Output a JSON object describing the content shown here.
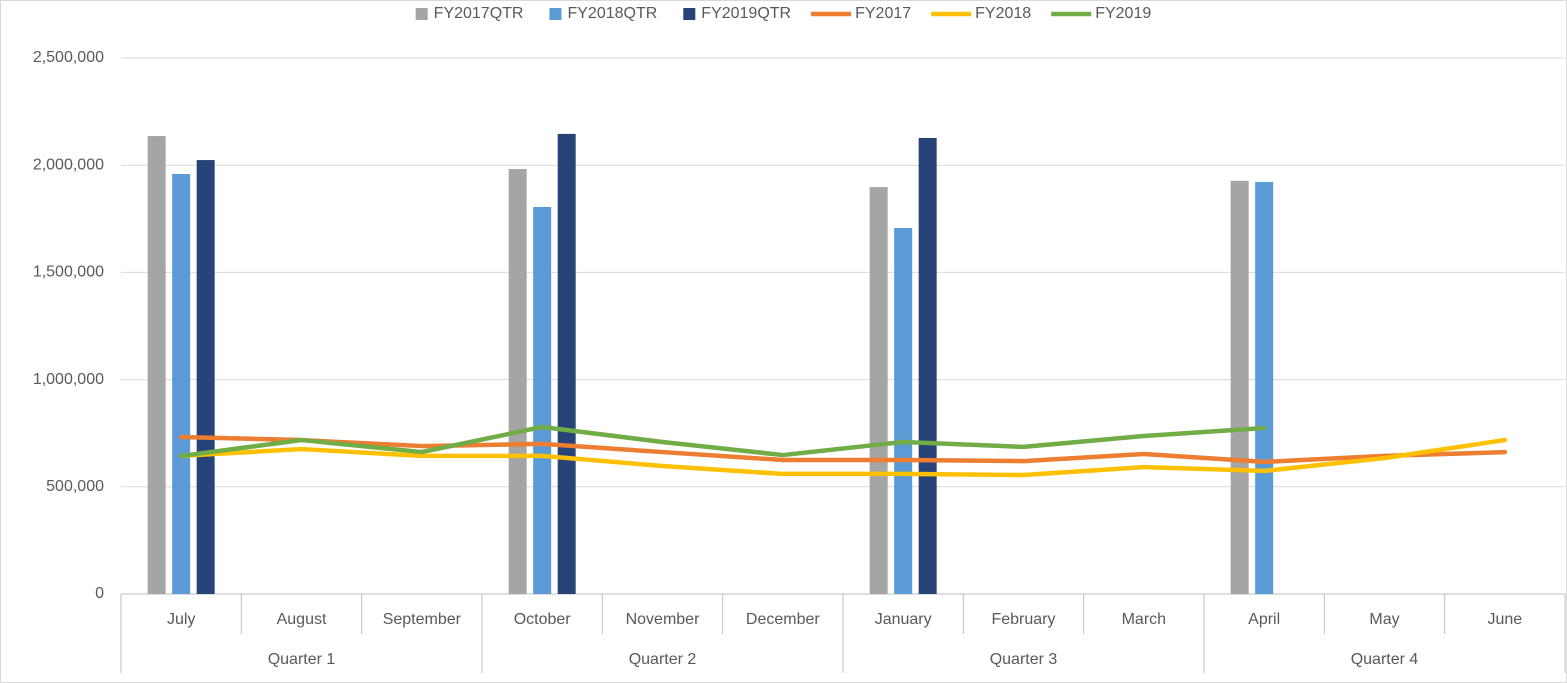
{
  "chart_data": {
    "type": "bar",
    "categories": [
      "July",
      "August",
      "September",
      "October",
      "November",
      "December",
      "January",
      "February",
      "March",
      "April",
      "May",
      "June"
    ],
    "group_labels": [
      "Quarter 1",
      "Quarter 2",
      "Quarter 3",
      "Quarter 4"
    ],
    "series": [
      {
        "name": "FY2017QTR",
        "type": "bar",
        "color": "#a5a5a5",
        "values": [
          2136000,
          null,
          null,
          1982000,
          null,
          null,
          1898000,
          null,
          null,
          1927000,
          null,
          null
        ]
      },
      {
        "name": "FY2018QTR",
        "type": "bar",
        "color": "#5b9bd5",
        "values": [
          1959000,
          null,
          null,
          1805000,
          null,
          null,
          1707000,
          null,
          null,
          1922000,
          null,
          null
        ]
      },
      {
        "name": "FY2019QTR",
        "type": "bar",
        "color": "#264478",
        "values": [
          2024000,
          null,
          null,
          2146000,
          null,
          null,
          2127000,
          null,
          null,
          null,
          null,
          null
        ]
      },
      {
        "name": "FY2017",
        "type": "line",
        "color": "#ed7d31",
        "values": [
          732000,
          718000,
          690000,
          700000,
          662000,
          625000,
          625000,
          620000,
          653000,
          616000,
          644000,
          662000
        ]
      },
      {
        "name": "FY2018",
        "type": "line",
        "color": "#ffc000",
        "values": [
          644000,
          676000,
          644000,
          644000,
          597000,
          560000,
          560000,
          555000,
          592000,
          574000,
          634000,
          718000
        ]
      },
      {
        "name": "FY2019",
        "type": "line",
        "color": "#70ad47",
        "values": [
          644000,
          718000,
          662000,
          779000,
          709000,
          648000,
          709000,
          686000,
          737000,
          774000,
          null,
          null
        ]
      }
    ],
    "ylim": [
      0,
      2500000
    ],
    "yticks": [
      0,
      {
        "value": 500000,
        "label": "500,000"
      },
      {
        "value": 1000000,
        "label": "1,000,000"
      },
      {
        "value": 1500000,
        "label": "1,500,000"
      },
      {
        "value": 2000000,
        "label": "2,000,000"
      },
      {
        "value": 2500000,
        "label": "2,500,000"
      }
    ],
    "grid": true,
    "legend": "top"
  }
}
